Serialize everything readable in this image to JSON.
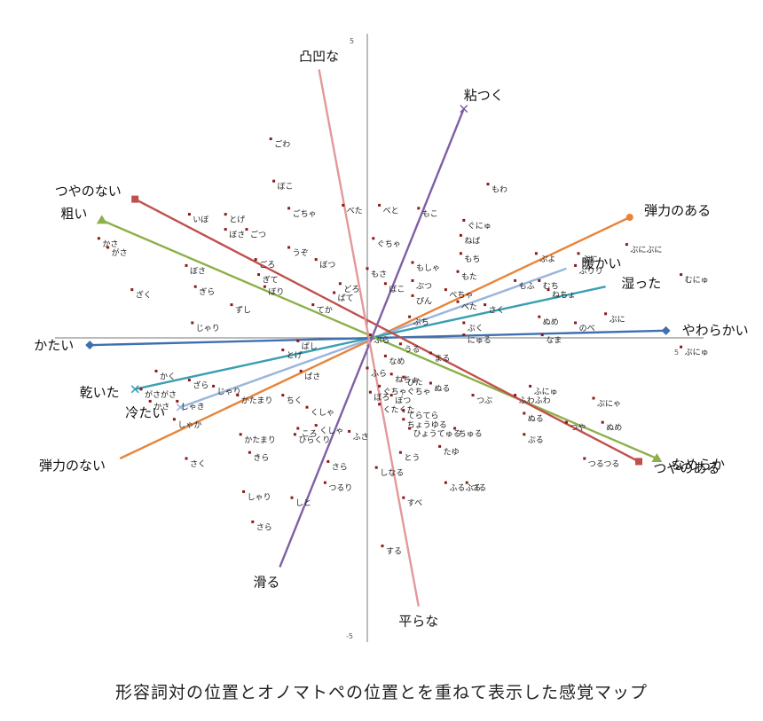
{
  "caption": "形容詞対の位置とオノマトペの位置とを重ねて表示した感覚マップ",
  "chart_data": {
    "type": "scatter",
    "xlim": [
      -5,
      5
    ],
    "ylim": [
      -5,
      5
    ],
    "ticks": {
      "x_min": "",
      "x_max": "5",
      "y_max": "5",
      "y_min": "-5"
    },
    "grid": false,
    "vectors": [
      {
        "pos": "弾力のある",
        "neg": "弾力のない",
        "color": "#e8843a",
        "pos_xy": [
          4.35,
          2.0
        ],
        "neg_xy": [
          -4.1,
          -2.0
        ],
        "pos_marker": "dot",
        "neg_marker": "none"
      },
      {
        "pos": "暖かい",
        "neg": "冷たい",
        "color": "#9ab6dc",
        "pos_xy": [
          3.3,
          1.15
        ],
        "neg_xy": [
          -3.1,
          -1.15
        ],
        "pos_marker": "none",
        "neg_marker": "x"
      },
      {
        "pos": "湿った",
        "neg": "乾いた",
        "color": "#3a9fb3",
        "pos_xy": [
          3.95,
          0.85
        ],
        "neg_xy": [
          -3.85,
          -0.85
        ],
        "pos_marker": "none",
        "neg_marker": "x"
      },
      {
        "pos": "やわらかい",
        "neg": "かたい",
        "color": "#3f6fb0",
        "pos_xy": [
          4.95,
          0.12
        ],
        "neg_xy": [
          -4.6,
          -0.12
        ],
        "pos_marker": "diamond",
        "neg_marker": "diamond"
      },
      {
        "pos": "なめらか",
        "neg": "粗い",
        "color": "#8db04a",
        "pos_xy": [
          4.8,
          -2.0
        ],
        "neg_xy": [
          -4.4,
          1.95
        ],
        "pos_marker": "triangle",
        "neg_marker": "triangle"
      },
      {
        "pos": "つやのある",
        "neg": "つやのない",
        "color": "#c0504d",
        "pos_xy": [
          4.5,
          -2.05
        ],
        "neg_xy": [
          -3.85,
          2.3
        ],
        "pos_marker": "square",
        "neg_marker": "square"
      },
      {
        "pos": "粘つく",
        "neg": "滑る",
        "color": "#7f5fa6",
        "pos_xy": [
          1.6,
          3.8
        ],
        "neg_xy": [
          -1.45,
          -3.8
        ],
        "pos_marker": "x",
        "neg_marker": "none"
      },
      {
        "pos": "凸凹な",
        "neg": "平らな",
        "color": "#e3989a",
        "pos_xy": [
          -0.8,
          4.45
        ],
        "neg_xy": [
          0.85,
          -4.45
        ],
        "pos_marker": "none",
        "neg_marker": "none"
      }
    ],
    "onomatopoeia": [
      {
        "label": "ごわ",
        "x": -1.6,
        "y": 3.3
      },
      {
        "label": "ぼこ",
        "x": -1.55,
        "y": 2.6
      },
      {
        "label": "べた",
        "x": -0.4,
        "y": 2.2
      },
      {
        "label": "べと",
        "x": 0.2,
        "y": 2.2
      },
      {
        "label": "もこ",
        "x": 0.85,
        "y": 2.15
      },
      {
        "label": "もわ",
        "x": 2.0,
        "y": 2.55
      },
      {
        "label": "いぼ",
        "x": -2.95,
        "y": 2.05
      },
      {
        "label": "とげ",
        "x": -2.35,
        "y": 2.05
      },
      {
        "label": "ごちゃ",
        "x": -1.3,
        "y": 2.15
      },
      {
        "label": "ぼさ",
        "x": -2.35,
        "y": 1.8
      },
      {
        "label": "ごつ",
        "x": -2.0,
        "y": 1.8
      },
      {
        "label": "ぐちゃ",
        "x": 0.1,
        "y": 1.65
      },
      {
        "label": "ぐにゅ",
        "x": 1.6,
        "y": 1.95
      },
      {
        "label": "ねば",
        "x": 1.55,
        "y": 1.7
      },
      {
        "label": "かさ",
        "x": -4.45,
        "y": 1.65
      },
      {
        "label": "がさ",
        "x": -4.3,
        "y": 1.5
      },
      {
        "label": "うぞ",
        "x": -1.3,
        "y": 1.5
      },
      {
        "label": "ごろ",
        "x": -1.85,
        "y": 1.3
      },
      {
        "label": "ぼつ",
        "x": -0.85,
        "y": 1.3
      },
      {
        "label": "もち",
        "x": 1.55,
        "y": 1.4
      },
      {
        "label": "ぷよ",
        "x": 2.8,
        "y": 1.4
      },
      {
        "label": "ぷに",
        "x": 3.5,
        "y": 1.4
      },
      {
        "label": "ぶにぶに",
        "x": 4.3,
        "y": 1.55
      },
      {
        "label": "もさ",
        "x": 0.0,
        "y": 1.15
      },
      {
        "label": "もしゃ",
        "x": 0.75,
        "y": 1.25
      },
      {
        "label": "ぼさ",
        "x": -3.0,
        "y": 1.2
      },
      {
        "label": "ぎて",
        "x": -1.8,
        "y": 1.05
      },
      {
        "label": "もた",
        "x": 1.5,
        "y": 1.1
      },
      {
        "label": "ぷりり",
        "x": 3.45,
        "y": 1.2
      },
      {
        "label": "むにゅ",
        "x": 5.2,
        "y": 1.05
      },
      {
        "label": "ぼり",
        "x": -1.7,
        "y": 0.85
      },
      {
        "label": "どろ",
        "x": -0.45,
        "y": 0.9
      },
      {
        "label": "ぼこ",
        "x": 0.3,
        "y": 0.9
      },
      {
        "label": "ぷつ",
        "x": 0.75,
        "y": 0.95
      },
      {
        "label": "べちゃ",
        "x": 1.3,
        "y": 0.8
      },
      {
        "label": "もふ",
        "x": 2.45,
        "y": 0.95
      },
      {
        "label": "むち",
        "x": 2.85,
        "y": 0.95
      },
      {
        "label": "ざく",
        "x": -3.9,
        "y": 0.8
      },
      {
        "label": "ぎら",
        "x": -2.85,
        "y": 0.85
      },
      {
        "label": "ぱて",
        "x": -0.55,
        "y": 0.75
      },
      {
        "label": "ぴん",
        "x": 0.75,
        "y": 0.7
      },
      {
        "label": "ねちょ",
        "x": 3.0,
        "y": 0.8
      },
      {
        "label": "ずし",
        "x": -2.25,
        "y": 0.55
      },
      {
        "label": "てか",
        "x": -0.9,
        "y": 0.55
      },
      {
        "label": "べた",
        "x": 1.5,
        "y": 0.6
      },
      {
        "label": "ぷに",
        "x": 3.95,
        "y": 0.4
      },
      {
        "label": "さく",
        "x": 1.95,
        "y": 0.55
      },
      {
        "label": "ぷち",
        "x": 0.7,
        "y": 0.35
      },
      {
        "label": "じゃり",
        "x": -2.9,
        "y": 0.25
      },
      {
        "label": "ぬめ",
        "x": 2.85,
        "y": 0.35
      },
      {
        "label": "のべ",
        "x": 3.45,
        "y": 0.25
      },
      {
        "label": "ぷく",
        "x": 1.6,
        "y": 0.25
      },
      {
        "label": "にゅる",
        "x": 1.6,
        "y": 0.05
      },
      {
        "label": "なま",
        "x": 2.9,
        "y": 0.05
      },
      {
        "label": "ぱし",
        "x": -1.15,
        "y": -0.05
      },
      {
        "label": "とげ",
        "x": -1.4,
        "y": -0.2
      },
      {
        "label": "うる",
        "x": 0.55,
        "y": -0.1
      },
      {
        "label": "まる",
        "x": 1.05,
        "y": -0.25
      },
      {
        "label": "ぷにゅ",
        "x": 5.2,
        "y": -0.15
      },
      {
        "label": "ぱさ",
        "x": -1.1,
        "y": -0.55
      },
      {
        "label": "かく",
        "x": -3.5,
        "y": -0.55
      },
      {
        "label": "ざら",
        "x": -2.95,
        "y": -0.7
      },
      {
        "label": "ぴた",
        "x": 0.6,
        "y": -0.65
      },
      {
        "label": "ふにゅ",
        "x": 2.7,
        "y": -0.8
      },
      {
        "label": "がさがさ",
        "x": -3.75,
        "y": -0.85
      },
      {
        "label": "かさ",
        "x": -3.6,
        "y": -1.05
      },
      {
        "label": "じゃり",
        "x": -2.55,
        "y": -0.8
      },
      {
        "label": "かたまり",
        "x": -2.15,
        "y": -0.95
      },
      {
        "label": "ちく",
        "x": -1.4,
        "y": -0.95
      },
      {
        "label": "しゃき",
        "x": -3.15,
        "y": -1.05
      },
      {
        "label": "つぶ",
        "x": 1.75,
        "y": -0.95
      },
      {
        "label": "ふわふわ",
        "x": 2.45,
        "y": -0.95
      },
      {
        "label": "ぷにゃ",
        "x": 3.75,
        "y": -1.0
      },
      {
        "label": "くしゃ",
        "x": -1.0,
        "y": -1.15
      },
      {
        "label": "ぬる",
        "x": 2.6,
        "y": -1.25
      },
      {
        "label": "しゃか",
        "x": -3.2,
        "y": -1.35
      },
      {
        "label": "ぬめ",
        "x": 3.9,
        "y": -1.4
      },
      {
        "label": "つや",
        "x": 3.3,
        "y": -1.4
      },
      {
        "label": "ちゅる",
        "x": 1.45,
        "y": -1.5
      },
      {
        "label": "ふさ",
        "x": -0.3,
        "y": -1.55
      },
      {
        "label": "くしゃ",
        "x": -0.85,
        "y": -1.45
      },
      {
        "label": "ぷる",
        "x": 2.6,
        "y": -1.6
      },
      {
        "label": "ひらくり",
        "x": -1.2,
        "y": -1.6
      },
      {
        "label": "ころ",
        "x": -1.15,
        "y": -1.5
      },
      {
        "label": "かたまり",
        "x": -2.1,
        "y": -1.6
      },
      {
        "label": "たゆ",
        "x": 1.2,
        "y": -1.8
      },
      {
        "label": "つるつる",
        "x": 3.6,
        "y": -2.0
      },
      {
        "label": "きら",
        "x": -1.95,
        "y": -1.9
      },
      {
        "label": "とう",
        "x": 0.55,
        "y": -1.9
      },
      {
        "label": "さく",
        "x": -3.0,
        "y": -2.0
      },
      {
        "label": "さら",
        "x": -0.65,
        "y": -2.05
      },
      {
        "label": "しなる",
        "x": 0.15,
        "y": -2.15
      },
      {
        "label": "つるり",
        "x": -0.7,
        "y": -2.4
      },
      {
        "label": "ふるふる",
        "x": 1.3,
        "y": -2.4
      },
      {
        "label": "つる",
        "x": 1.65,
        "y": -2.4
      },
      {
        "label": "しゃり",
        "x": -2.05,
        "y": -2.55
      },
      {
        "label": "しと",
        "x": -1.25,
        "y": -2.65
      },
      {
        "label": "すべ",
        "x": 0.6,
        "y": -2.65
      },
      {
        "label": "さら",
        "x": -1.9,
        "y": -3.05
      },
      {
        "label": "する",
        "x": 0.25,
        "y": -3.45
      },
      {
        "label": "ぐちゃぐちゃ",
        "x": 0.2,
        "y": -0.8
      },
      {
        "label": "ぼろ",
        "x": 0.05,
        "y": -0.9
      },
      {
        "label": "ぽつ",
        "x": 0.4,
        "y": -0.95
      },
      {
        "label": "くたくた",
        "x": 0.2,
        "y": -1.1
      },
      {
        "label": "てらてら",
        "x": 0.6,
        "y": -1.2
      },
      {
        "label": "ちょうゆる",
        "x": 0.6,
        "y": -1.35
      },
      {
        "label": "ひょうてゅる",
        "x": 0.7,
        "y": -1.5
      },
      {
        "label": "ねちょ",
        "x": 0.4,
        "y": -0.6
      },
      {
        "label": "ぬる",
        "x": 1.05,
        "y": -0.75
      },
      {
        "label": "ふら",
        "x": 0.0,
        "y": -0.5
      },
      {
        "label": "なめ",
        "x": 0.3,
        "y": -0.3
      },
      {
        "label": "ぷら",
        "x": 0.05,
        "y": 0.05
      }
    ]
  }
}
